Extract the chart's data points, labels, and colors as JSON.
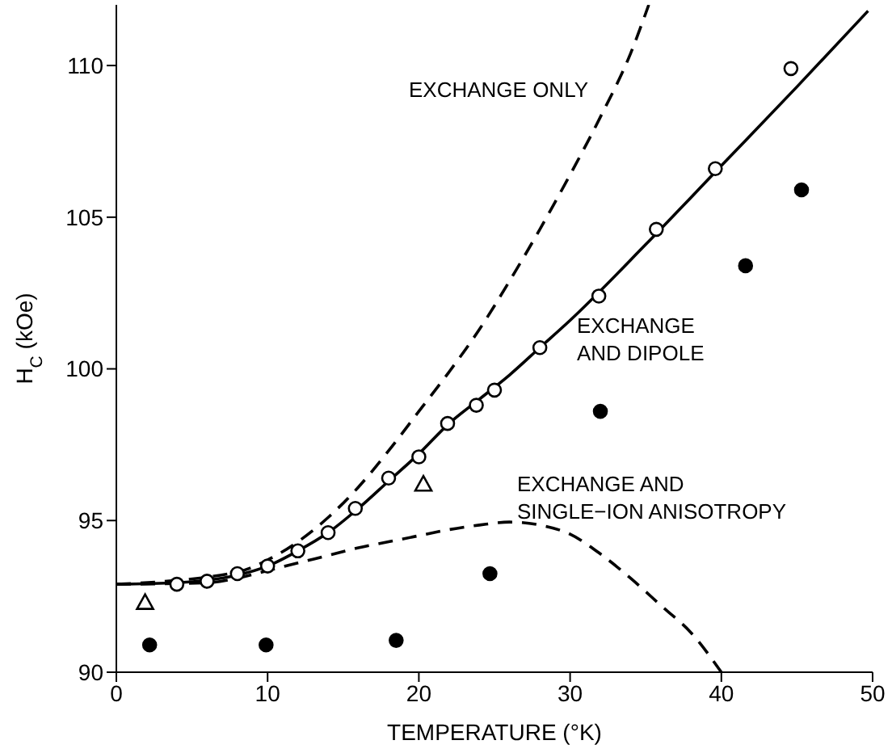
{
  "chart_data": {
    "type": "scatter",
    "xlabel": "TEMPERATURE (°K)",
    "ylabel": "H$_{C}$ (kOe)",
    "xlim": [
      0,
      50
    ],
    "xticks": [
      0,
      10,
      20,
      30,
      40,
      50
    ],
    "ylim": [
      90,
      112
    ],
    "yticks": [
      90,
      95,
      100,
      105,
      110
    ],
    "series": [
      {
        "type": "line",
        "line_style": "solid",
        "color": "#000000",
        "x": [
          0,
          4,
          8,
          10,
          12,
          14,
          16,
          18,
          20,
          22,
          24,
          26,
          28,
          30,
          35,
          40,
          45,
          49.7
        ],
        "values": [
          92.9,
          92.95,
          93.2,
          93.5,
          94.0,
          94.6,
          95.4,
          96.3,
          97.2,
          98.2,
          99.0,
          99.8,
          100.7,
          101.6,
          104.1,
          106.7,
          109.3,
          111.8
        ]
      },
      {
        "type": "line",
        "line_style": "dashed",
        "color": "#000000",
        "x": [
          0,
          8,
          10,
          12,
          14,
          16,
          18,
          20,
          22,
          24,
          26,
          28,
          30,
          32,
          34,
          35.2
        ],
        "values": [
          92.9,
          93.3,
          93.7,
          94.3,
          95.1,
          96.1,
          97.3,
          98.6,
          99.9,
          101.3,
          102.9,
          104.6,
          106.4,
          108.3,
          110.4,
          112
        ]
      },
      {
        "type": "line",
        "line_style": "dashed",
        "color": "#000000",
        "x": [
          0,
          6,
          8,
          10,
          12,
          14,
          16,
          18,
          20,
          22,
          24,
          26,
          28,
          30,
          32,
          34,
          36,
          38,
          40
        ],
        "values": [
          92.9,
          92.95,
          93.1,
          93.35,
          93.6,
          93.85,
          94.1,
          94.3,
          94.5,
          94.7,
          94.85,
          94.95,
          94.85,
          94.55,
          93.9,
          93.1,
          92.2,
          91.3,
          90.0
        ]
      },
      {
        "marker": "circle",
        "color": "#ffffff",
        "x": [
          4.0,
          6.0,
          8.0,
          10.0,
          12.0,
          14.0,
          15.8,
          18.0,
          20.0,
          21.9,
          23.8,
          25.0,
          28.0,
          31.9,
          35.7,
          39.6,
          44.6
        ],
        "values": [
          92.9,
          93.0,
          93.25,
          93.5,
          94.0,
          94.6,
          95.4,
          96.4,
          97.1,
          98.2,
          98.8,
          99.3,
          100.7,
          102.4,
          104.6,
          106.6,
          109.9
        ]
      },
      {
        "marker": "circle",
        "color": "#000000",
        "x": [
          2.2,
          9.9,
          18.5,
          24.7,
          32.0,
          41.6,
          45.3
        ],
        "values": [
          90.9,
          90.9,
          91.05,
          93.25,
          98.6,
          103.4,
          105.9
        ]
      },
      {
        "marker": "triangle",
        "color": "#ffffff",
        "x": [
          1.9,
          20.3
        ],
        "values": [
          92.3,
          96.2
        ]
      }
    ],
    "annotations": [
      "EXCHANGE ONLY",
      "EXCHANGE\nAND DIPOLE",
      "EXCHANGE AND\nSINGLE−ION ANISOTROPY"
    ]
  }
}
